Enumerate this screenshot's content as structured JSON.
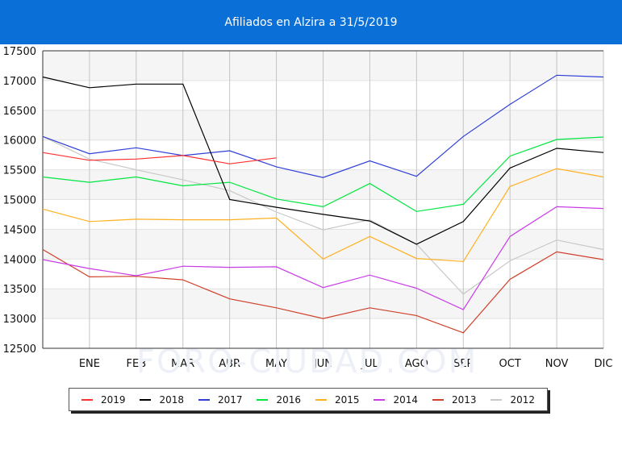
{
  "header": {
    "title": "Afiliados en Alzira a 31/5/2019",
    "background": "#0a6fd6"
  },
  "chart_data": {
    "type": "line",
    "title": "Afiliados en Alzira a 31/5/2019",
    "categories": [
      "",
      "ENE",
      "FEB",
      "MAR",
      "ABR",
      "MAY",
      "JUN",
      "JUL",
      "AGO",
      "SEP",
      "OCT",
      "NOV",
      "DIC"
    ],
    "ylim": [
      12500,
      17500
    ],
    "yticks": [
      12500,
      13000,
      13500,
      14000,
      14500,
      15000,
      15500,
      16000,
      16500,
      17000,
      17500
    ],
    "grid": true,
    "legend_position": "bottom",
    "watermark": "FORO-CIUDAD.COM",
    "series": [
      {
        "name": "2019",
        "color": "#ff3030",
        "values": [
          15790,
          15660,
          15680,
          15740,
          15600,
          15700,
          null,
          null,
          null,
          null,
          null,
          null,
          null
        ]
      },
      {
        "name": "2018",
        "color": "#000000",
        "values": [
          17060,
          16880,
          16940,
          16940,
          15000,
          14870,
          14750,
          14640,
          14250,
          14630,
          15530,
          15860,
          15790
        ]
      },
      {
        "name": "2017",
        "color": "#2f3fd8",
        "values": [
          16060,
          15770,
          15870,
          15740,
          15820,
          15550,
          15370,
          15650,
          15390,
          16060,
          16600,
          17090,
          17060
        ]
      },
      {
        "name": "2016",
        "color": "#00e640",
        "values": [
          15380,
          15290,
          15380,
          15230,
          15290,
          15010,
          14880,
          15270,
          14800,
          14920,
          15730,
          16010,
          16050
        ]
      },
      {
        "name": "2015",
        "color": "#ffb020",
        "values": [
          14840,
          14630,
          14670,
          14660,
          14660,
          14690,
          14000,
          14380,
          14010,
          13960,
          15220,
          15520,
          15380
        ]
      },
      {
        "name": "2014",
        "color": "#c83ce6",
        "values": [
          13990,
          13840,
          13720,
          13880,
          13860,
          13870,
          13520,
          13730,
          13510,
          13150,
          14380,
          14880,
          14850
        ]
      },
      {
        "name": "2013",
        "color": "#d0402a",
        "values": [
          14160,
          13700,
          13710,
          13650,
          13330,
          13180,
          13000,
          13180,
          13050,
          12760,
          13660,
          14120,
          13990
        ]
      },
      {
        "name": "2012",
        "color": "#c8c8c8",
        "values": [
          16060,
          15680,
          15500,
          15330,
          15150,
          14790,
          14490,
          14660,
          14250,
          13410,
          13970,
          14320,
          14160
        ]
      }
    ]
  }
}
